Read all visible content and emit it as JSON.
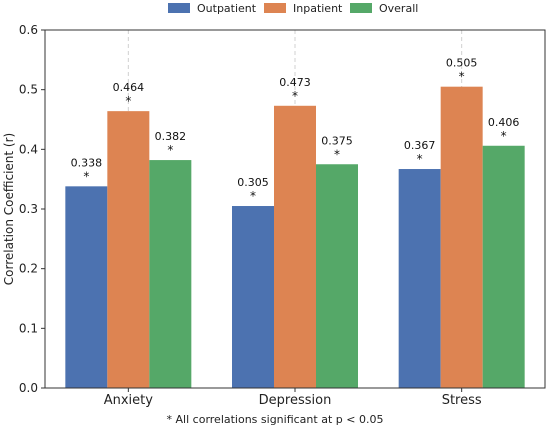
{
  "chart_data": {
    "type": "bar",
    "categories": [
      "Anxiety",
      "Depression",
      "Stress"
    ],
    "series": [
      {
        "name": "Outpatient",
        "values": [
          0.338,
          0.305,
          0.367
        ],
        "color": "#4c72b0"
      },
      {
        "name": "Inpatient",
        "values": [
          0.464,
          0.473,
          0.505
        ],
        "color": "#dd8452"
      },
      {
        "name": "Overall",
        "values": [
          0.382,
          0.375,
          0.406
        ],
        "color": "#55a868"
      }
    ],
    "value_labels": [
      [
        "0.338",
        "0.305",
        "0.367"
      ],
      [
        "0.464",
        "0.473",
        "0.505"
      ],
      [
        "0.382",
        "0.375",
        "0.406"
      ]
    ],
    "significance_marker": "*",
    "ylabel": "Correlation Coefficient (r)",
    "xlabel": "",
    "ylim": [
      0.0,
      0.6
    ],
    "yticks": [
      "0.0",
      "0.1",
      "0.2",
      "0.3",
      "0.4",
      "0.5",
      "0.6"
    ],
    "grid": "vertical dashed",
    "legend_position": "top-center"
  },
  "footnote": "* All correlations significant at p < 0.05"
}
